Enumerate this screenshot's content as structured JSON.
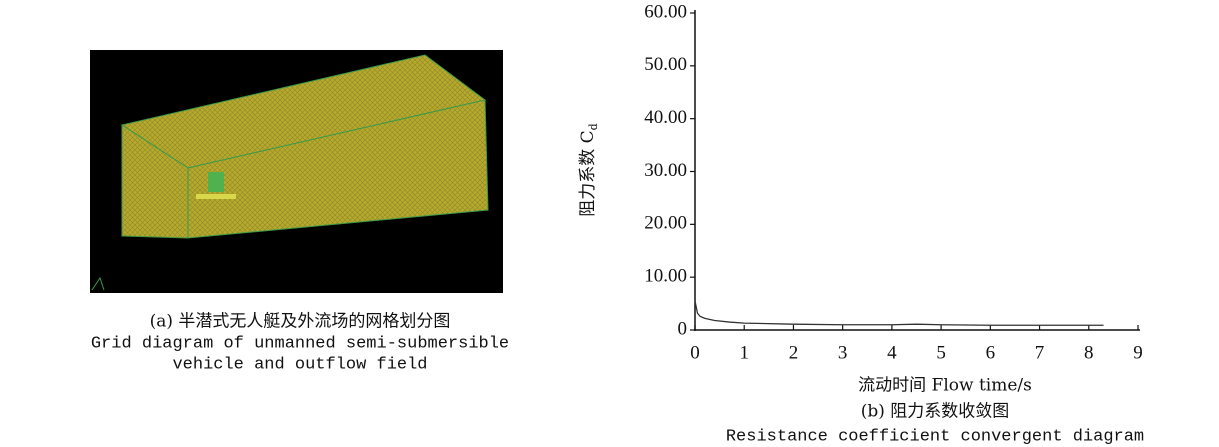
{
  "panel_a": {
    "caption_cn": "(a) 半潜式无人艇及外流场的网格划分图",
    "caption_en_1": "Grid diagram of unmanned semi-submersible",
    "caption_en_2": "vehicle and outflow field"
  },
  "chart_data": {
    "type": "line",
    "x_label": "流动时间 Flow time/s",
    "y_label": "阻力系数 C",
    "y_label_sub": "d",
    "caption_cn": "(b) 阻力系数收敛图",
    "caption_en": "Resistance coefficient convergent diagram",
    "xlim": [
      0,
      9
    ],
    "xticks": [
      0,
      1,
      2,
      3,
      4,
      5,
      6,
      7,
      8,
      9
    ],
    "ylim": [
      0,
      60
    ],
    "yticks": [
      0,
      {
        "value": 10,
        "label": "10.00"
      },
      {
        "value": 20,
        "label": "20.00"
      },
      {
        "value": 30,
        "label": "30.00"
      },
      {
        "value": 40,
        "label": "40.00"
      },
      {
        "value": 50,
        "label": "50.00"
      },
      {
        "value": 60,
        "label": "60.00"
      }
    ],
    "series": [
      {
        "color": "#333333",
        "x": [
          0,
          0.05,
          0.1,
          0.2,
          0.4,
          0.7,
          1,
          2,
          3,
          4,
          4.5,
          5,
          6,
          7,
          8,
          8.3
        ],
        "values": [
          5.5,
          3.2,
          2.6,
          2.2,
          1.8,
          1.5,
          1.3,
          1.1,
          1.0,
          1.0,
          1.1,
          1.0,
          0.9,
          0.9,
          0.9,
          0.9
        ]
      }
    ]
  }
}
